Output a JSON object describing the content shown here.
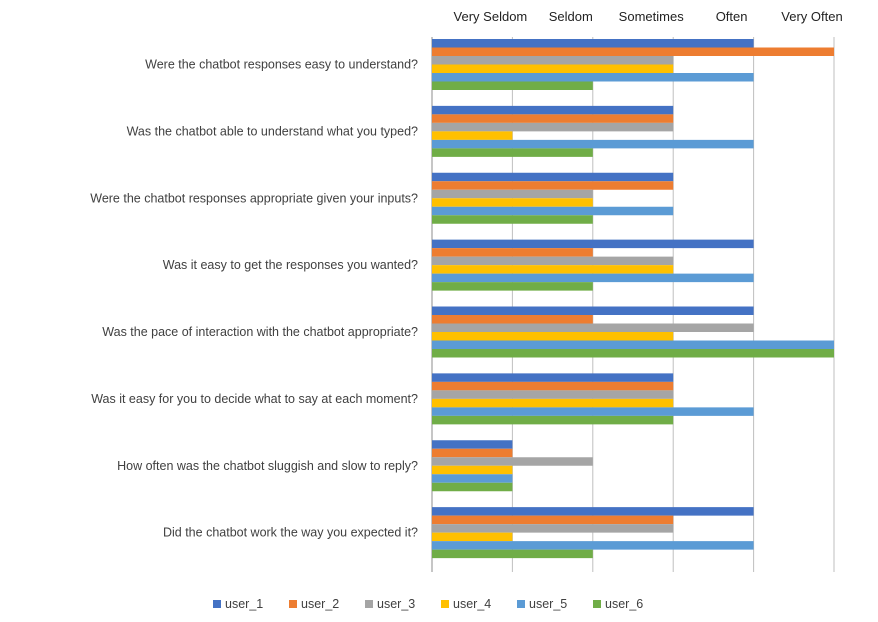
{
  "chart_data": {
    "type": "bar",
    "orientation": "horizontal",
    "categories": [
      "Were the chatbot responses easy to understand?",
      "Was the chatbot able to understand what you typed?",
      "Were the chatbot responses appropriate given your inputs?",
      "Was it easy to get the responses you wanted?",
      "Was the pace of interaction with the chatbot appropriate?",
      "Was it easy for you to decide what to say at each moment?",
      "How often was the chatbot sluggish and slow to reply?",
      "Did the chatbot work the way you expected it?"
    ],
    "x_ticks": [
      "Very Seldom",
      "Seldom",
      "Sometimes",
      "Often",
      "Very Often"
    ],
    "xlim": [
      0,
      5
    ],
    "xaxis_position": "top",
    "grid": true,
    "legend_position": "bottom",
    "series": [
      {
        "name": "user_1",
        "color": "#4472C4",
        "values": [
          4,
          3,
          3,
          4,
          4,
          3,
          1,
          4
        ]
      },
      {
        "name": "user_2",
        "color": "#ED7D31",
        "values": [
          5,
          3,
          3,
          2,
          2,
          3,
          1,
          3
        ]
      },
      {
        "name": "user_3",
        "color": "#A5A5A5",
        "values": [
          3,
          3,
          2,
          3,
          4,
          3,
          2,
          3
        ]
      },
      {
        "name": "user_4",
        "color": "#FFC000",
        "values": [
          3,
          1,
          2,
          3,
          3,
          3,
          1,
          1
        ]
      },
      {
        "name": "user_5",
        "color": "#5B9BD5",
        "values": [
          4,
          4,
          3,
          4,
          5,
          4,
          1,
          4
        ]
      },
      {
        "name": "user_6",
        "color": "#70AD47",
        "values": [
          2,
          2,
          2,
          2,
          5,
          3,
          1,
          2
        ]
      }
    ]
  }
}
